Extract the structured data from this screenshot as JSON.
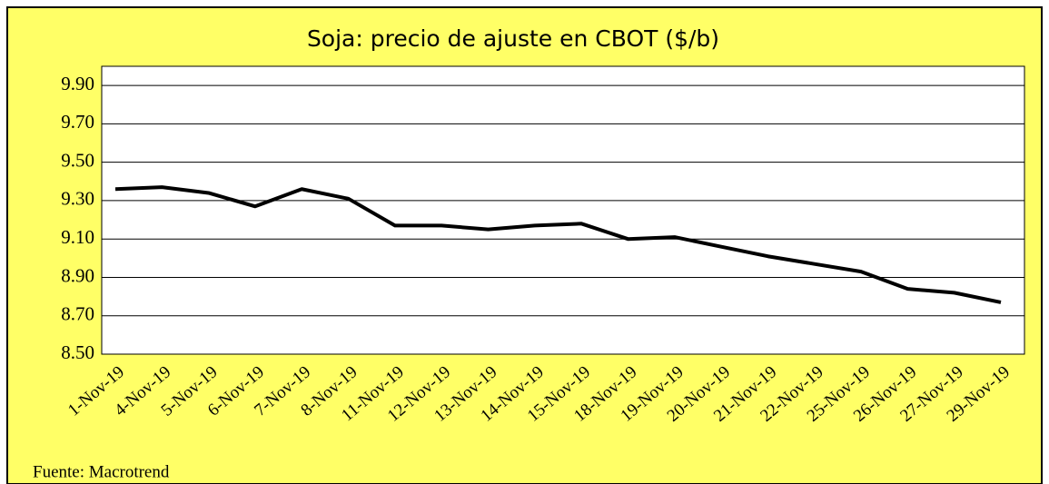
{
  "chart_data": {
    "type": "line",
    "title": "Soja: precio de ajuste en CBOT ($/b)",
    "categories": [
      "1-Nov-19",
      "4-Nov-19",
      "5-Nov-19",
      "6-Nov-19",
      "7-Nov-19",
      "8-Nov-19",
      "11-Nov-19",
      "12-Nov-19",
      "13-Nov-19",
      "14-Nov-19",
      "15-Nov-19",
      "18-Nov-19",
      "19-Nov-19",
      "20-Nov-19",
      "21-Nov-19",
      "22-Nov-19",
      "25-Nov-19",
      "26-Nov-19",
      "27-Nov-19",
      "29-Nov-19"
    ],
    "values": [
      9.36,
      9.37,
      9.34,
      9.27,
      9.36,
      9.31,
      9.17,
      9.17,
      9.15,
      9.17,
      9.18,
      9.1,
      9.11,
      9.06,
      9.01,
      8.97,
      8.93,
      8.84,
      8.82,
      8.77
    ],
    "color": "#000000",
    "ylim": [
      8.5,
      10.0
    ],
    "yticks": [
      {
        "value": 8.5,
        "label": "8.50"
      },
      {
        "value": 8.7,
        "label": "8.70"
      },
      {
        "value": 8.9,
        "label": "8.90"
      },
      {
        "value": 9.1,
        "label": "9.10"
      },
      {
        "value": 9.3,
        "label": "9.30"
      },
      {
        "value": 9.5,
        "label": "9.50"
      },
      {
        "value": 9.7,
        "label": "9.70"
      },
      {
        "value": 9.9,
        "label": "9.90"
      }
    ],
    "grid": true,
    "source": "Fuente: Macrotrend"
  }
}
